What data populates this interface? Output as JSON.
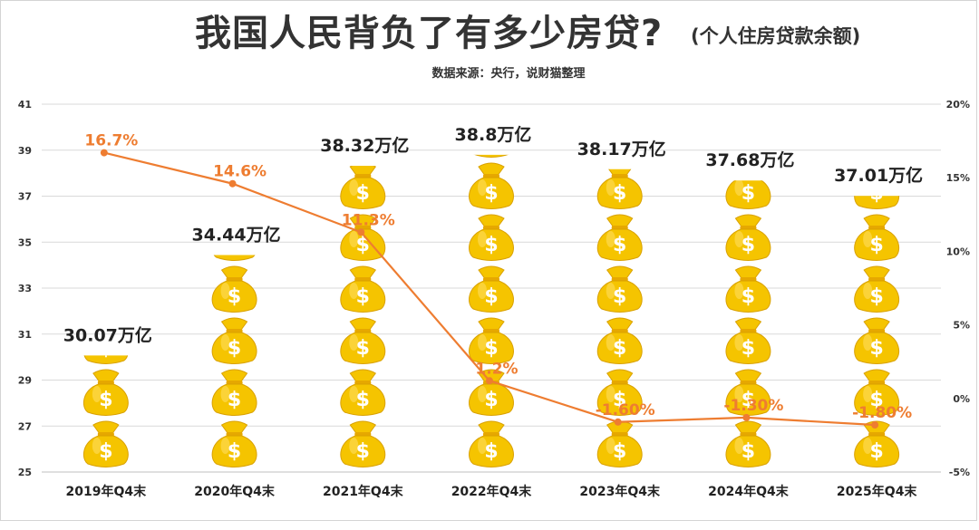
{
  "title": "我国人民背负了有多少房贷?",
  "subtitle": "(个人住房贷款余额)",
  "source": "数据来源：央行，说财猫整理",
  "colors": {
    "growth_line": "#ee7d31",
    "bag_fill": "#f5c400",
    "bag_dark": "#e6a800",
    "coin_symbol": "#ffffff",
    "grid": "#d9d9d9"
  },
  "icons": {
    "bag": "money-bag-icon"
  },
  "chart_data": {
    "type": "bar",
    "categories": [
      "2019年Q4末",
      "2020年Q4末",
      "2021年Q4末",
      "2022年Q4末",
      "2023年Q4末",
      "2024年Q4末",
      "2025年Q4末"
    ],
    "series": [
      {
        "values": [
          30.07,
          34.44,
          38.32,
          38.8,
          38.17,
          37.68,
          37.01
        ],
        "labels": [
          "30.07万亿",
          "34.44万亿",
          "38.32万亿",
          "38.8万亿",
          "38.17万亿",
          "37.68万亿",
          "37.01万亿"
        ],
        "axis": "left",
        "mark": "stacked-money-bags"
      },
      {
        "type": "line",
        "values": [
          16.7,
          14.6,
          11.3,
          1.2,
          -1.6,
          -1.3,
          -1.8
        ],
        "labels": [
          "16.7%",
          "14.6%",
          "11.3%",
          "1.2%",
          "-1.60%",
          "-1.30%",
          "-1.80%"
        ],
        "axis": "right"
      }
    ],
    "y_left": {
      "min": 25,
      "max": 41,
      "ticks": [
        "25",
        "27",
        "29",
        "31",
        "33",
        "35",
        "37",
        "39",
        "41"
      ]
    },
    "y_right": {
      "min": -5,
      "max": 20,
      "ticks": [
        "-5%",
        "0%",
        "5%",
        "10%",
        "15%",
        "20%"
      ]
    },
    "grid": true,
    "legend": "none"
  }
}
